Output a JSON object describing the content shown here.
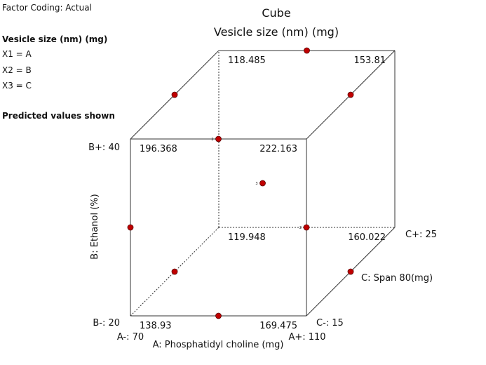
{
  "info": {
    "coding": "Factor Coding: Actual",
    "response": "Vesicle size (nm) (mg)",
    "x1": "X1 = A",
    "x2": "X2 = B",
    "x3": "X3 = C",
    "predicted": "Predicted values shown"
  },
  "chart_data": {
    "type": "cube",
    "title": "Cube",
    "subtitle": "Vesicle size (nm) (mg)",
    "axes": {
      "A": {
        "label": "A: Phosphatidyl choline (mg)",
        "low": "A-: 70",
        "high": "A+: 110"
      },
      "B": {
        "label": "B: Ethanol (%)",
        "low": "B-: 20",
        "high": "B+: 40"
      },
      "C": {
        "label": "C: Span 80(mg)",
        "low": "C-: 15",
        "high": "C+: 25"
      }
    },
    "corners": [
      {
        "a": -1,
        "b": -1,
        "c": -1,
        "value": "138.93"
      },
      {
        "a": 1,
        "b": -1,
        "c": -1,
        "value": "169.475"
      },
      {
        "a": -1,
        "b": 1,
        "c": -1,
        "value": "196.368"
      },
      {
        "a": 1,
        "b": 1,
        "c": -1,
        "value": "222.163"
      },
      {
        "a": -1,
        "b": -1,
        "c": 1,
        "value": "119.948"
      },
      {
        "a": 1,
        "b": -1,
        "c": 1,
        "value": "160.022"
      },
      {
        "a": -1,
        "b": 1,
        "c": 1,
        "value": "118.485"
      },
      {
        "a": 1,
        "b": 1,
        "c": 1,
        "value": "153.81"
      }
    ],
    "design_points": [
      {
        "a": 0,
        "b": -1,
        "c": -1,
        "count": ""
      },
      {
        "a": -1,
        "b": 0,
        "c": -1,
        "count": ""
      },
      {
        "a": 0,
        "b": 1,
        "c": -1,
        "count": "2"
      },
      {
        "a": 1,
        "b": 0,
        "c": -1,
        "count": "2"
      },
      {
        "a": -1,
        "b": -1,
        "c": 0,
        "count": ""
      },
      {
        "a": 1,
        "b": -1,
        "c": 0,
        "count": ""
      },
      {
        "a": -1,
        "b": 1,
        "c": 0,
        "count": ""
      },
      {
        "a": 1,
        "b": 1,
        "c": 0,
        "count": ""
      },
      {
        "a": 0,
        "b": 1,
        "c": 1,
        "count": ""
      },
      {
        "a": 0,
        "b": 0,
        "c": 0,
        "count": "3"
      }
    ],
    "point_color": "#c00000",
    "edge_color": "#333333"
  }
}
